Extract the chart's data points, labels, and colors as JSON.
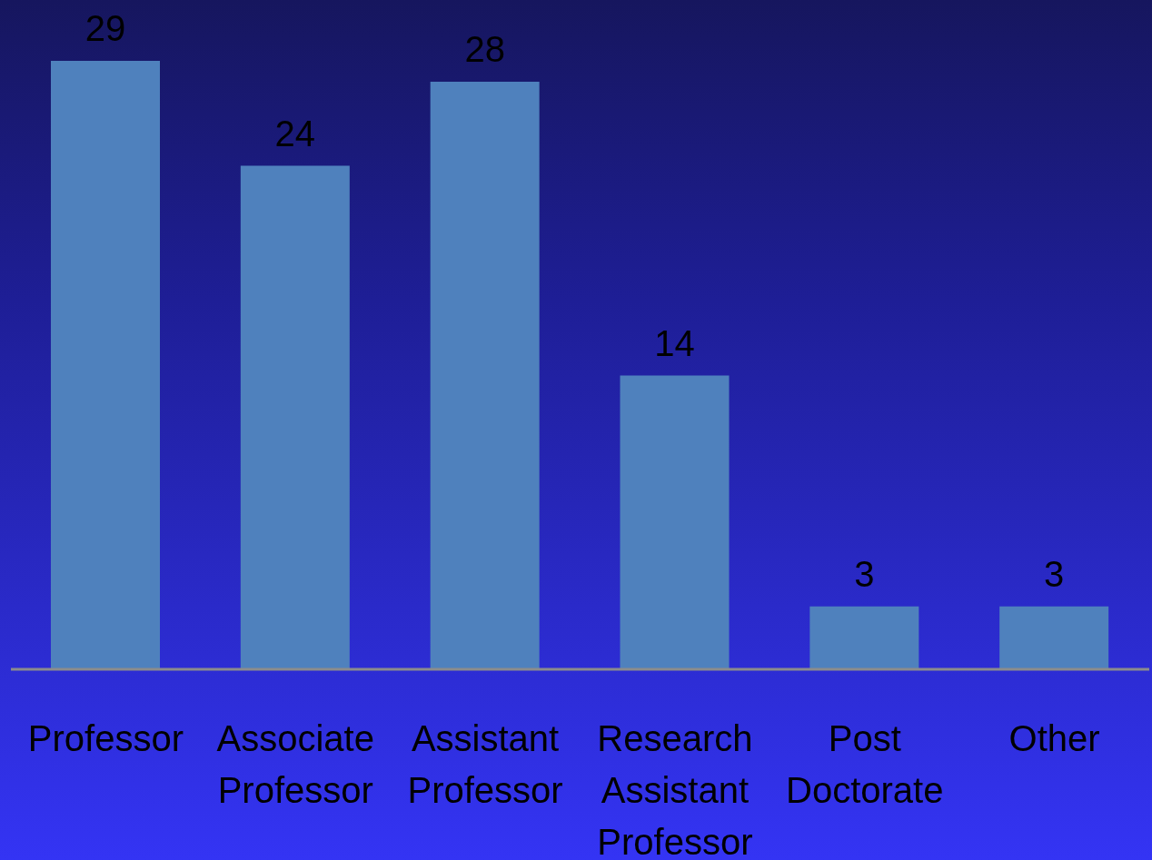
{
  "chart_data": {
    "type": "bar",
    "categories": [
      "Professor",
      "Associate Professor",
      "Assistant Professor",
      "Research Assistant Professor",
      "Post Doctorate",
      "Other"
    ],
    "values": [
      29,
      24,
      28,
      14,
      3,
      3
    ],
    "color": "#4f81bd",
    "data_labels": true
  }
}
